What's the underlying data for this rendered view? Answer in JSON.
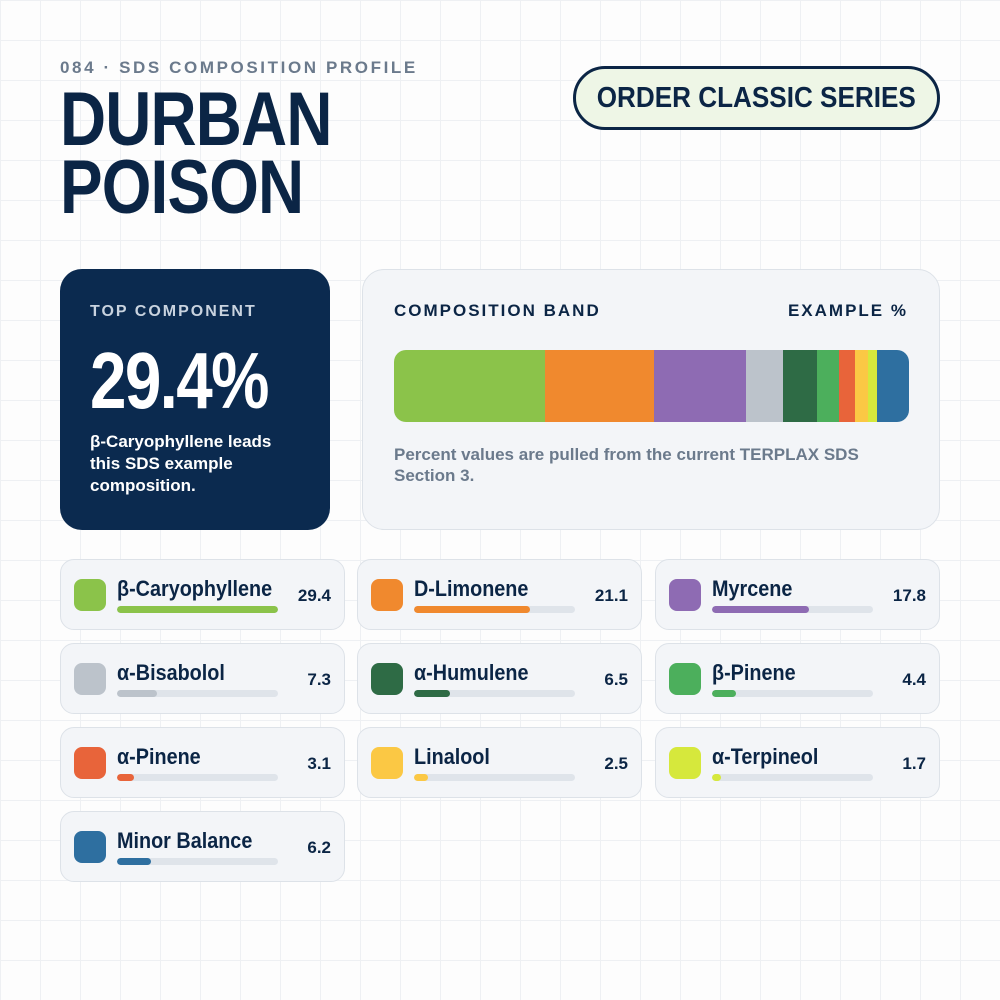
{
  "chart_data": {
    "type": "composition",
    "kicker": "084 · SDS COMPOSITION PROFILE",
    "title": "DURBAN POISON",
    "button": "ORDER CLASSIC SERIES",
    "top_component": {
      "label": "TOP COMPONENT",
      "value_label": "29.4%",
      "note": "β-Caryophyllene leads this SDS example composition."
    },
    "band_title": "COMPOSITION BAND",
    "band_unit": "EXAMPLE %",
    "note": "Percent values are pulled from the current TERPLAX SDS Section 3.",
    "categories": [
      "β-Caryophyllene",
      "D-Limonene",
      "Myrcene",
      "α-Bisabolol",
      "α-Humulene",
      "β-Pinene",
      "α-Pinene",
      "Linalool",
      "α-Terpineol",
      "Minor Balance"
    ],
    "values": [
      29.4,
      21.1,
      17.8,
      7.3,
      6.5,
      4.4,
      3.1,
      2.5,
      1.7,
      6.2
    ],
    "colors": [
      "#8bc34a",
      "#f0892e",
      "#8e6bb3",
      "#bcc3cb",
      "#2e6b45",
      "#4caf5c",
      "#e8643a",
      "#fbc844",
      "#d6e83c",
      "#2e6fa0"
    ]
  }
}
